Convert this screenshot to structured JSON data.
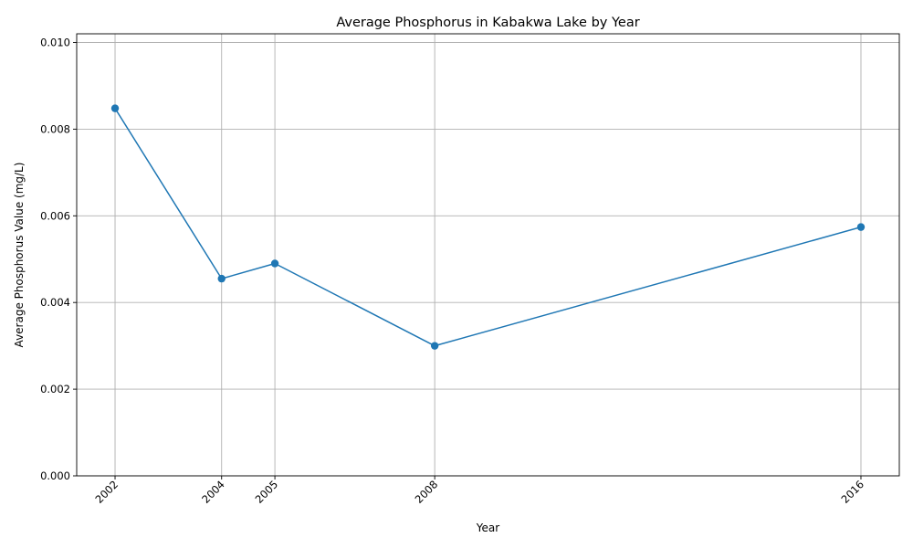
{
  "chart_data": {
    "type": "line",
    "title": "Average Phosphorus in Kabakwa Lake by Year",
    "xlabel": "Year",
    "ylabel": "Average Phosphorus Value (mg/L)",
    "x": [
      2002,
      2004,
      2005,
      2008,
      2016
    ],
    "x_tick_labels": [
      "2002",
      "2004",
      "2005",
      "2008",
      "2016"
    ],
    "series": [
      {
        "values": [
          0.00848,
          0.00455,
          0.0049,
          0.003,
          0.00574
        ],
        "color": "#1f77b4",
        "marker": "circle"
      }
    ],
    "y_ticks": [
      0.0,
      0.002,
      0.004,
      0.006,
      0.008,
      0.01
    ],
    "y_tick_labels": [
      "0.000",
      "0.002",
      "0.004",
      "0.006",
      "0.008",
      "0.010"
    ],
    "xlim": [
      2001.28,
      2016.72
    ],
    "ylim": [
      0.0,
      0.0102
    ],
    "grid": true,
    "x_tick_rotation_deg": 45
  }
}
